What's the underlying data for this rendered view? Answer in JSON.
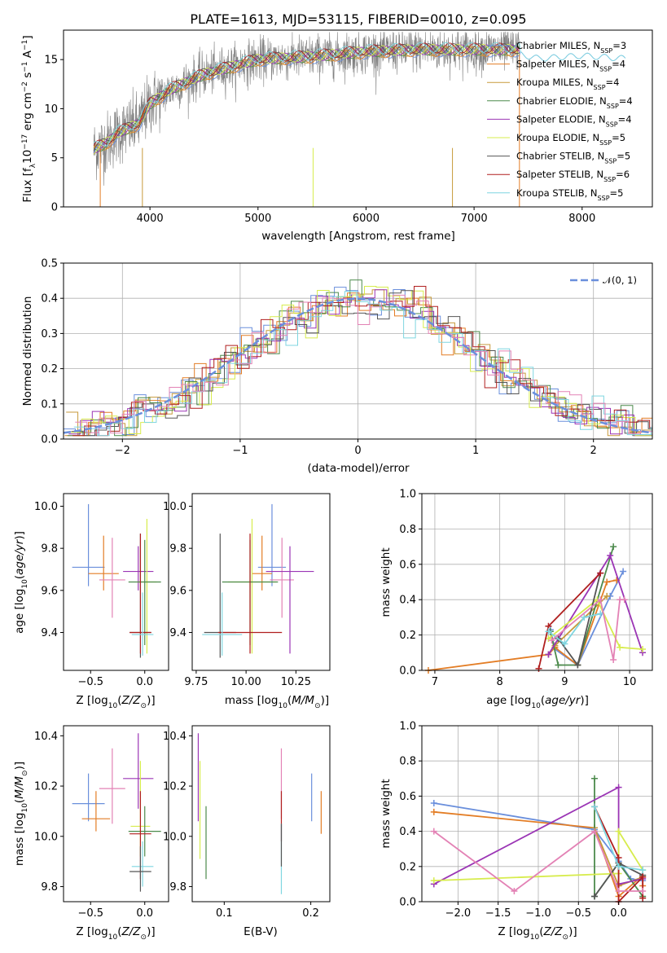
{
  "colors": {
    "Chabrier MILES": "#6a8fdc",
    "Salpeter MILES": "#e37d25",
    "Kroupa MILES": "#c79a3b",
    "Chabrier ELODIE": "#4c8a4c",
    "Salpeter ELODIE": "#9b35b5",
    "Kroupa ELODIE": "#d7ec4d",
    "Chabrier STELIB": "#555555",
    "Salpeter STELIB": "#b01f1f",
    "Kroupa STELIB": "#7fd6e0",
    "pink": "#e382b5",
    "gaussian": "#6a8fdc",
    "data": "#808080"
  },
  "chart_data": [
    {
      "id": "spectrum",
      "type": "line",
      "title": "PLATE=1613, MJD=53115, FIBERID=0010, z=0.095",
      "xlabel": "wavelength [Angstrom, rest frame]",
      "ylabel": "Flux [f_λ10^-17 erg cm^-2 s^-1 A^-1]",
      "xlim": [
        3200,
        8650
      ],
      "ylim": [
        0,
        18
      ],
      "xticks": [
        4000,
        5000,
        6000,
        7000,
        8000
      ],
      "yticks": [
        0,
        5,
        10,
        15
      ],
      "spectrum_shape": {
        "x": [
          3450,
          3500,
          3600,
          3700,
          3800,
          3900,
          4000,
          4200,
          4500,
          5000,
          5500,
          6000,
          6500,
          7000,
          7400,
          7600,
          8000,
          8400
        ],
        "y": [
          5.5,
          6.0,
          6.5,
          7.5,
          8.0,
          8.5,
          10.5,
          12.0,
          13.5,
          15.0,
          15.3,
          15.8,
          16.0,
          16.0,
          16.0,
          15.5,
          15.8,
          15.5
        ]
      },
      "legend": [
        {
          "key": "Chabrier MILES",
          "name": "Chabrier MILES",
          "nssp": "3"
        },
        {
          "key": "Salpeter MILES",
          "name": "Salpeter MILES",
          "nssp": "4"
        },
        {
          "key": "Kroupa MILES",
          "name": "Kroupa MILES",
          "nssp": "4"
        },
        {
          "key": "Chabrier ELODIE",
          "name": "Chabrier ELODIE",
          "nssp": "4"
        },
        {
          "key": "Salpeter ELODIE",
          "name": "Salpeter ELODIE",
          "nssp": "4"
        },
        {
          "key": "Kroupa ELODIE",
          "name": "Kroupa ELODIE",
          "nssp": "5"
        },
        {
          "key": "Chabrier STELIB",
          "name": "Chabrier STELIB",
          "nssp": "5"
        },
        {
          "key": "Salpeter STELIB",
          "name": "Salpeter STELIB",
          "nssp": "6"
        },
        {
          "key": "Kroupa STELIB",
          "name": "Kroupa STELIB",
          "nssp": "5"
        }
      ]
    },
    {
      "id": "residuals",
      "type": "bar",
      "xlabel": "(data-model)/error",
      "ylabel": "Normed distribution",
      "xlim": [
        -2.5,
        2.5
      ],
      "ylim": [
        0,
        0.5
      ],
      "xticks": [
        -2,
        -1,
        0,
        1,
        2
      ],
      "yticks": [
        0.0,
        0.1,
        0.2,
        0.3,
        0.4,
        0.5
      ],
      "grid": true,
      "legend": "𝒩(0, 1)"
    },
    {
      "id": "age_vs_Z",
      "type": "scatter",
      "xlabel": "Z [log10(Z/Z⊙)]",
      "ylabel": "age [log10(age/yr)]",
      "xlim": [
        -0.75,
        0.22
      ],
      "ylim": [
        9.22,
        10.06
      ],
      "xticks": [
        -0.5,
        0.0
      ],
      "yticks": [
        9.4,
        9.6,
        9.8,
        10.0
      ],
      "points": [
        {
          "c": "Chabrier MILES",
          "x": -0.52,
          "y": 9.71,
          "xerr": 0.15,
          "yerr": [
            0.09,
            0.3
          ]
        },
        {
          "c": "Salpeter MILES",
          "x": -0.38,
          "y": 9.68,
          "xerr": 0.14,
          "yerr": [
            0.08,
            0.18
          ]
        },
        {
          "c": "pink",
          "x": -0.3,
          "y": 9.65,
          "xerr": 0.12,
          "yerr": [
            0.18,
            0.2
          ]
        },
        {
          "c": "Salpeter ELODIE",
          "x": -0.06,
          "y": 9.69,
          "xerr": 0.14,
          "yerr": [
            0.09,
            0.12
          ]
        },
        {
          "c": "Kroupa ELODIE",
          "x": 0.02,
          "y": 9.64,
          "xerr": 0.09,
          "yerr": [
            0.34,
            0.3
          ]
        },
        {
          "c": "Chabrier ELODIE",
          "x": 0.0,
          "y": 9.64,
          "xerr": 0.15,
          "yerr": [
            0.3,
            0.2
          ]
        },
        {
          "c": "Chabrier STELIB",
          "x": -0.04,
          "y": 9.4,
          "xerr": 0.1,
          "yerr": [
            0.12,
            0.47
          ]
        },
        {
          "c": "Salpeter STELIB",
          "x": -0.04,
          "y": 9.4,
          "xerr": 0.1,
          "yerr": [
            0.1,
            0.47
          ]
        },
        {
          "c": "Kroupa STELIB",
          "x": -0.02,
          "y": 9.39,
          "xerr": 0.1,
          "yerr": [
            0.1,
            0.2
          ]
        }
      ]
    },
    {
      "id": "age_vs_mass",
      "type": "scatter",
      "xlabel": "mass [log10(M/M⊙)]",
      "ylabel": "",
      "xlim": [
        9.73,
        10.42
      ],
      "ylim": [
        9.22,
        10.06
      ],
      "xticks": [
        9.75,
        10.0,
        10.25
      ],
      "yticks": [
        9.4,
        9.6,
        9.8,
        10.0
      ],
      "points": [
        {
          "c": "Chabrier MILES",
          "x": 10.13,
          "y": 9.71,
          "xerr": 0.07,
          "yerr": [
            0.09,
            0.3
          ]
        },
        {
          "c": "Salpeter MILES",
          "x": 10.08,
          "y": 9.68,
          "xerr": 0.05,
          "yerr": [
            0.08,
            0.18
          ]
        },
        {
          "c": "pink",
          "x": 10.18,
          "y": 9.65,
          "xerr": 0.06,
          "yerr": [
            0.18,
            0.2
          ]
        },
        {
          "c": "Salpeter ELODIE",
          "x": 10.22,
          "y": 9.69,
          "xerr": 0.12,
          "yerr": [
            0.39,
            0.12
          ]
        },
        {
          "c": "Kroupa ELODIE",
          "x": 10.03,
          "y": 9.64,
          "xerr": 0.12,
          "yerr": [
            0.34,
            0.3
          ]
        },
        {
          "c": "Chabrier ELODIE",
          "x": 10.02,
          "y": 9.64,
          "xerr": 0.14,
          "yerr": [
            0.3,
            0.2
          ]
        },
        {
          "c": "Chabrier STELIB",
          "x": 9.87,
          "y": 9.4,
          "xerr": 0.08,
          "yerr": [
            0.12,
            0.47
          ]
        },
        {
          "c": "Salpeter STELIB",
          "x": 10.02,
          "y": 9.4,
          "xerr": 0.16,
          "yerr": [
            0.1,
            0.47
          ]
        },
        {
          "c": "Kroupa STELIB",
          "x": 9.88,
          "y": 9.39,
          "xerr": 0.1,
          "yerr": [
            0.1,
            0.2
          ]
        }
      ]
    },
    {
      "id": "weight_vs_age",
      "type": "line",
      "xlabel": "age [log10(age/yr)]",
      "ylabel": "mass weight",
      "xlim": [
        6.8,
        10.35
      ],
      "ylim": [
        0,
        1.0
      ],
      "xticks": [
        7,
        8,
        9,
        10
      ],
      "yticks": [
        0.0,
        0.2,
        0.4,
        0.6,
        0.8,
        1.0
      ],
      "series": [
        {
          "c": "Chabrier MILES",
          "x": [
            8.78,
            8.85,
            9.2,
            9.7,
            9.9
          ],
          "y": [
            0.23,
            0.12,
            0.03,
            0.42,
            0.56
          ]
        },
        {
          "c": "Salpeter MILES",
          "x": [
            6.9,
            8.75,
            8.85,
            9.2,
            9.65,
            9.8
          ],
          "y": [
            0.0,
            0.09,
            0.13,
            0.03,
            0.5,
            0.51
          ]
        },
        {
          "c": "Kroupa MILES",
          "x": [
            8.75,
            8.85,
            9.65
          ],
          "y": [
            0.09,
            0.14,
            0.42
          ]
        },
        {
          "c": "Chabrier ELODIE",
          "x": [
            8.78,
            8.9,
            9.2,
            9.75
          ],
          "y": [
            0.22,
            0.03,
            0.03,
            0.7
          ]
        },
        {
          "c": "Salpeter ELODIE",
          "x": [
            8.75,
            9.7,
            10.2
          ],
          "y": [
            0.09,
            0.65,
            0.1
          ]
        },
        {
          "c": "Kroupa ELODIE",
          "x": [
            8.75,
            9.5,
            9.85,
            10.2
          ],
          "y": [
            0.18,
            0.4,
            0.13,
            0.12
          ]
        },
        {
          "c": "Chabrier STELIB",
          "x": [
            8.9,
            9.2,
            9.55
          ],
          "y": [
            0.18,
            0.03,
            0.55
          ]
        },
        {
          "c": "Salpeter STELIB",
          "x": [
            8.6,
            8.75,
            9.55
          ],
          "y": [
            0.01,
            0.25,
            0.55
          ]
        },
        {
          "c": "Kroupa STELIB",
          "x": [
            8.75,
            9.0,
            9.3,
            9.55
          ],
          "y": [
            0.22,
            0.15,
            0.3,
            0.32
          ]
        },
        {
          "c": "pink",
          "x": [
            8.8,
            9.55,
            9.75,
            9.85,
            9.92
          ],
          "y": [
            0.17,
            0.4,
            0.06,
            0.4,
            0.4
          ]
        }
      ]
    },
    {
      "id": "mass_vs_Z",
      "type": "scatter",
      "xlabel": "Z [log10(Z/Z⊙)]",
      "ylabel": "mass [log10(M/M⊙)]",
      "xlim": [
        -0.75,
        0.22
      ],
      "ylim": [
        9.74,
        10.44
      ],
      "xticks": [
        -0.5,
        0.0
      ],
      "yticks": [
        9.8,
        10.0,
        10.2,
        10.4
      ],
      "points": [
        {
          "c": "Chabrier MILES",
          "x": -0.52,
          "y": 10.13,
          "xerr": 0.15,
          "yerr": [
            0.07,
            0.12
          ]
        },
        {
          "c": "Salpeter MILES",
          "x": -0.45,
          "y": 10.07,
          "xerr": 0.13,
          "yerr": [
            0.05,
            0.11
          ]
        },
        {
          "c": "pink",
          "x": -0.3,
          "y": 10.19,
          "xerr": 0.12,
          "yerr": [
            0.14,
            0.16
          ]
        },
        {
          "c": "Salpeter ELODIE",
          "x": -0.06,
          "y": 10.23,
          "xerr": 0.14,
          "yerr": [
            0.12,
            0.18
          ]
        },
        {
          "c": "Kroupa ELODIE",
          "x": -0.04,
          "y": 10.04,
          "xerr": 0.09,
          "yerr": [
            0.12,
            0.26
          ]
        },
        {
          "c": "Chabrier ELODIE",
          "x": 0.0,
          "y": 10.02,
          "xerr": 0.15,
          "yerr": [
            0.1,
            0.1
          ]
        },
        {
          "c": "Salpeter STELIB",
          "x": -0.04,
          "y": 10.01,
          "xerr": 0.1,
          "yerr": [
            0.18,
            0.17
          ]
        },
        {
          "c": "Kroupa STELIB",
          "x": -0.02,
          "y": 9.88,
          "xerr": 0.1,
          "yerr": [
            0.08,
            0.1
          ]
        },
        {
          "c": "Chabrier STELIB",
          "x": -0.04,
          "y": 9.86,
          "xerr": 0.1,
          "yerr": [
            0.08,
            0.1
          ]
        }
      ]
    },
    {
      "id": "mass_vs_EBV",
      "type": "scatter",
      "xlabel": "E(B-V)",
      "ylabel": "",
      "xlim": [
        0.063,
        0.222
      ],
      "ylim": [
        9.74,
        10.44
      ],
      "xticks": [
        0.1,
        0.2
      ],
      "yticks": [
        9.8,
        10.0,
        10.2,
        10.4
      ],
      "points": [
        {
          "c": "Salpeter ELODIE",
          "x": 0.07,
          "y": 10.23,
          "yerr": [
            0.17,
            0.18
          ]
        },
        {
          "c": "Kroupa ELODIE",
          "x": 0.072,
          "y": 10.1,
          "yerr": [
            0.19,
            0.2
          ]
        },
        {
          "c": "Chabrier ELODIE",
          "x": 0.079,
          "y": 9.98,
          "yerr": [
            0.15,
            0.14
          ]
        },
        {
          "c": "pink",
          "x": 0.166,
          "y": 10.21,
          "yerr": [
            0.14,
            0.14
          ]
        },
        {
          "c": "Salpeter STELIB",
          "x": 0.166,
          "y": 10.08,
          "yerr": [
            0.1,
            0.1
          ]
        },
        {
          "c": "Kroupa STELIB",
          "x": 0.166,
          "y": 9.91,
          "yerr": [
            0.14,
            0.14
          ]
        },
        {
          "c": "Chabrier STELIB",
          "x": 0.166,
          "y": 9.96,
          "yerr": [
            0.08,
            0.09
          ]
        },
        {
          "c": "Chabrier MILES",
          "x": 0.201,
          "y": 10.16,
          "yerr": [
            0.1,
            0.09
          ]
        },
        {
          "c": "Salpeter MILES",
          "x": 0.212,
          "y": 10.09,
          "yerr": [
            0.08,
            0.09
          ]
        }
      ]
    },
    {
      "id": "weight_vs_Z",
      "type": "line",
      "xlabel": "Z [log10(Z/Z⊙)]",
      "ylabel": "mass weight",
      "xlim": [
        -2.45,
        0.42
      ],
      "ylim": [
        0,
        1.0
      ],
      "xticks": [
        -2.0,
        -1.5,
        -1.0,
        -0.5,
        0.0
      ],
      "yticks": [
        0.0,
        0.2,
        0.4,
        0.6,
        0.8,
        1.0
      ],
      "series": [
        {
          "c": "Chabrier MILES",
          "x": [
            -2.3,
            -0.3,
            0.0,
            0.15,
            0.3
          ],
          "y": [
            0.56,
            0.41,
            0.23,
            0.13,
            0.12
          ]
        },
        {
          "c": "Salpeter MILES",
          "x": [
            -2.3,
            -0.3,
            0.0,
            0.3,
            0.3
          ],
          "y": [
            0.51,
            0.42,
            0.03,
            0.15,
            0.09
          ]
        },
        {
          "c": "Kroupa MILES",
          "x": [
            -0.3,
            0.0,
            0.3
          ],
          "y": [
            0.42,
            0.09,
            0.14
          ]
        },
        {
          "c": "Chabrier ELODIE",
          "x": [
            -0.3,
            -0.3,
            0.0,
            0.3
          ],
          "y": [
            0.7,
            0.03,
            0.22,
            0.03
          ]
        },
        {
          "c": "Salpeter ELODIE",
          "x": [
            -2.3,
            0.0,
            0.0,
            0.3
          ],
          "y": [
            0.1,
            0.65,
            0.1,
            0.13
          ]
        },
        {
          "c": "Kroupa ELODIE",
          "x": [
            -2.3,
            0.0,
            0.0,
            0.3
          ],
          "y": [
            0.12,
            0.16,
            0.4,
            0.18
          ]
        },
        {
          "c": "Chabrier STELIB",
          "x": [
            -0.3,
            0.0,
            0.3
          ],
          "y": [
            0.03,
            0.22,
            0.15
          ]
        },
        {
          "c": "Salpeter STELIB",
          "x": [
            -0.3,
            0.0,
            0.0,
            0.3,
            0.3
          ],
          "y": [
            0.54,
            0.25,
            0.0,
            0.14,
            0.02
          ]
        },
        {
          "c": "Kroupa STELIB",
          "x": [
            -0.3,
            0.0,
            0.3
          ],
          "y": [
            0.54,
            0.2,
            0.18
          ]
        },
        {
          "c": "pink",
          "x": [
            -2.3,
            -1.3,
            -0.3,
            0.0,
            0.3
          ],
          "y": [
            0.4,
            0.06,
            0.4,
            0.06,
            0.06
          ]
        }
      ]
    }
  ]
}
